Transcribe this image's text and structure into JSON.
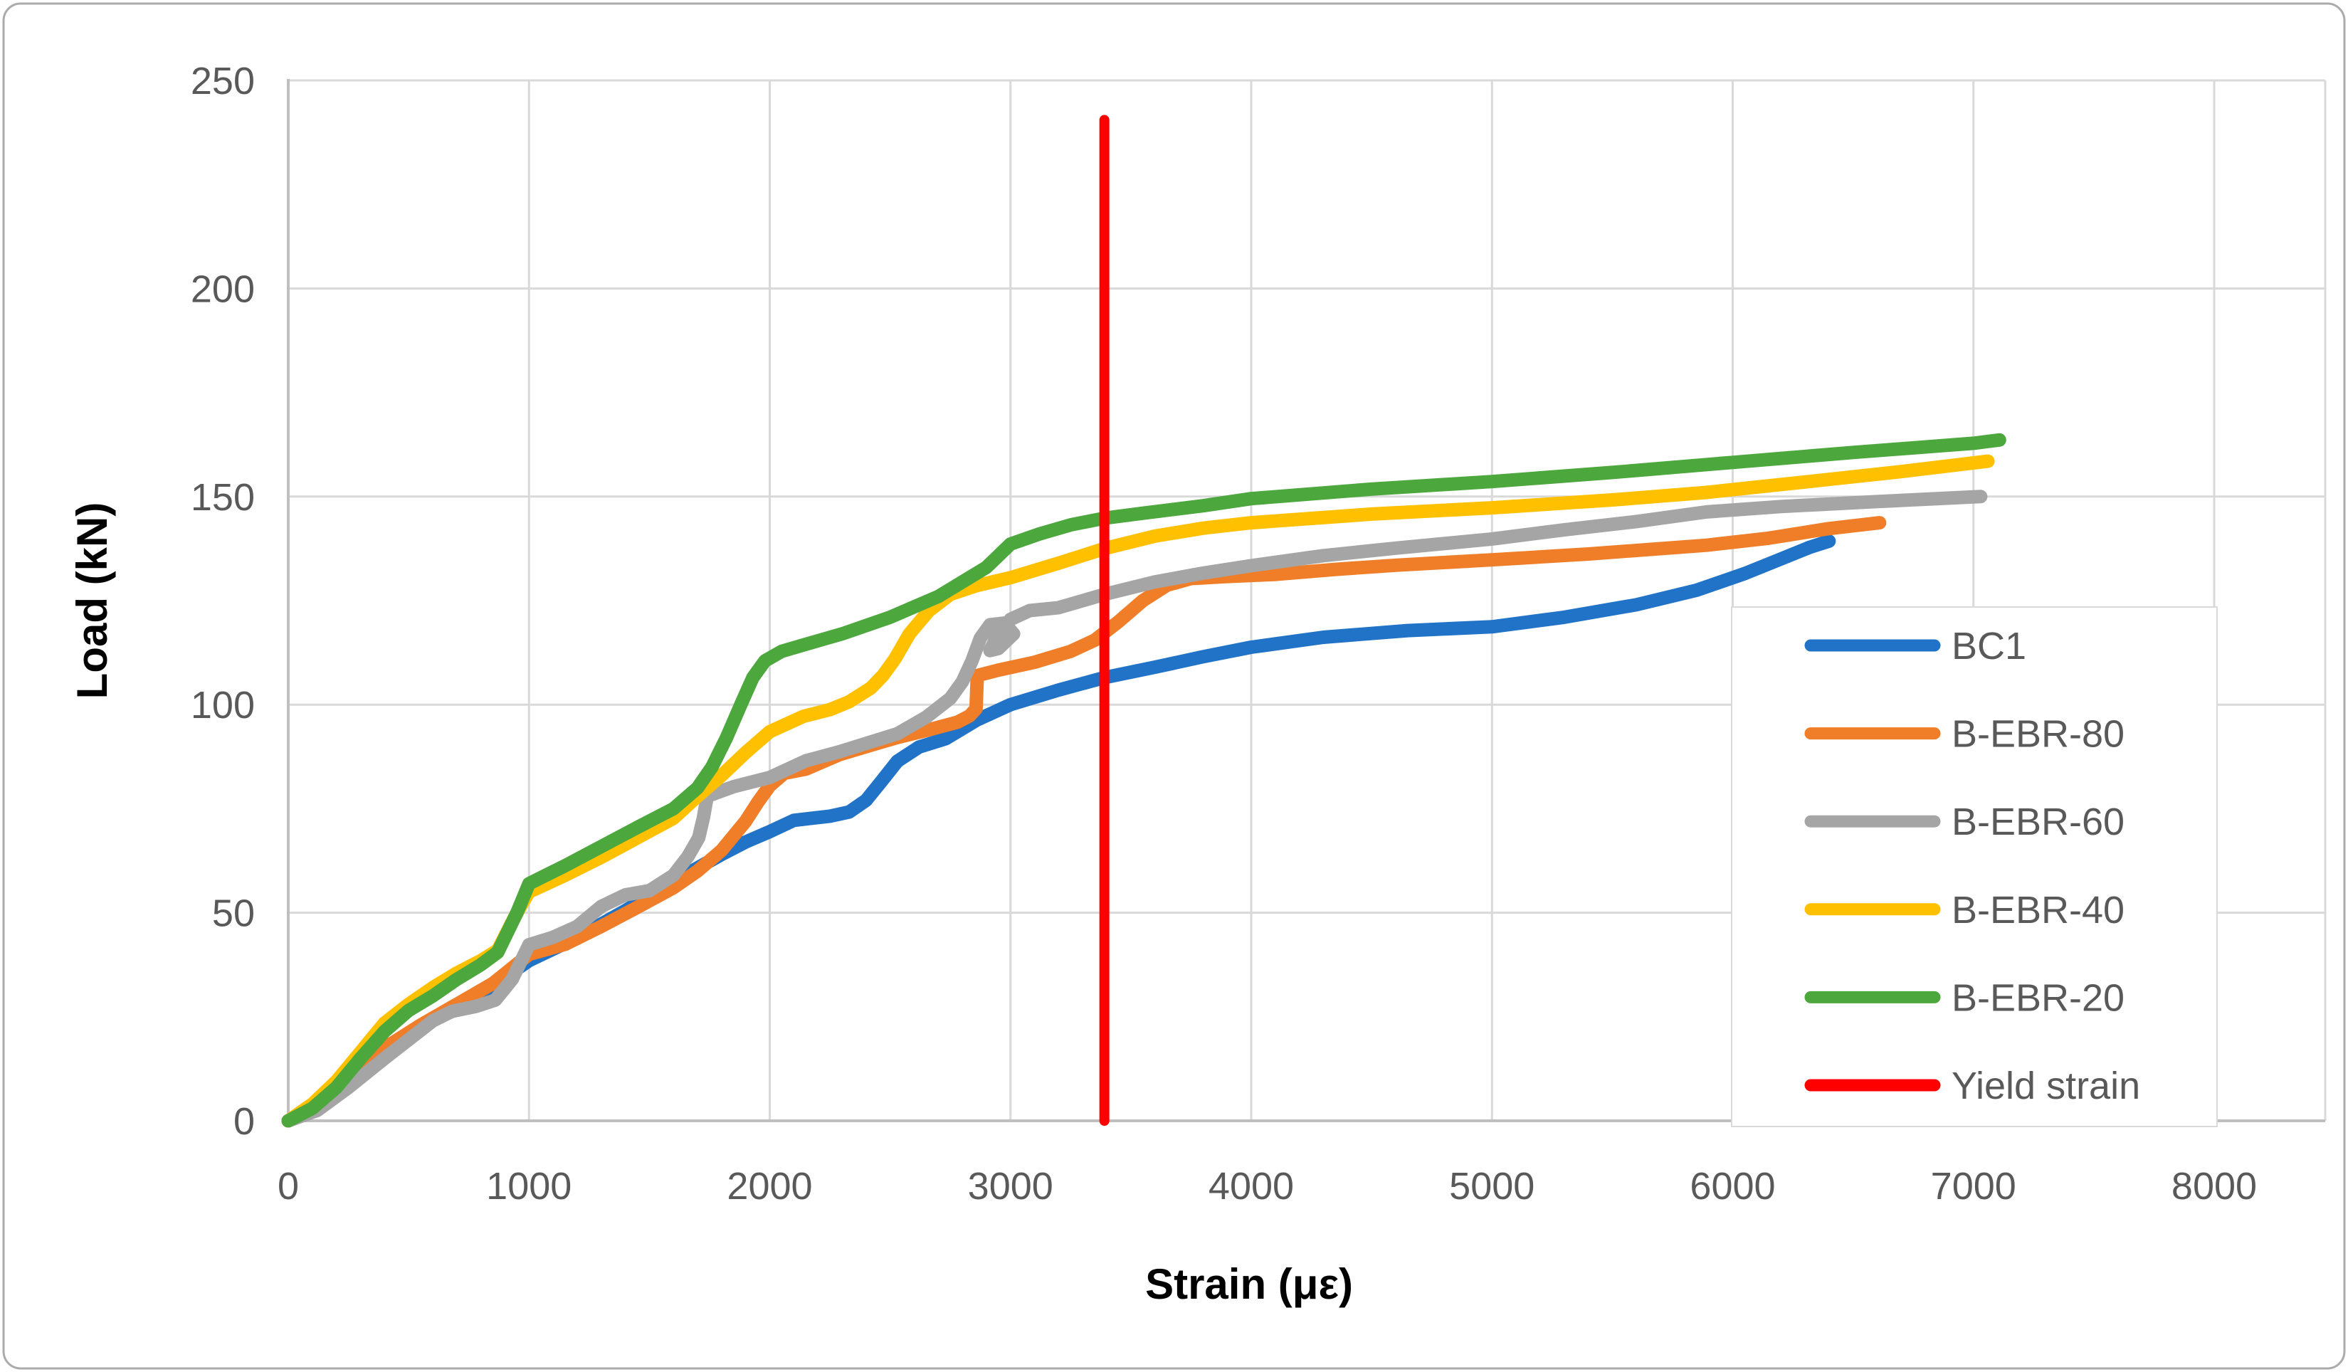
{
  "chart_data": {
    "type": "line",
    "title": "",
    "xlabel": "Strain (με)",
    "ylabel": "Load (kN)",
    "xlim": [
      0,
      8000
    ],
    "ylim": [
      0,
      250
    ],
    "x_ticks": [
      0,
      1000,
      2000,
      3000,
      4000,
      5000,
      6000,
      7000,
      8000
    ],
    "y_ticks": [
      0,
      50,
      100,
      150,
      200,
      250
    ],
    "grid": true,
    "legend_position": "inside-right",
    "colors": {
      "gridline": "#D9D9D9",
      "axis_line": "#BFBFBF",
      "tick_text": "#595959",
      "legend_border": "#D9D9D9",
      "outer_border": "#ABABAB",
      "yield_line": "#FF0000"
    },
    "series": [
      {
        "name": "BC1",
        "color": "#2173C7",
        "points": [
          [
            0,
            0
          ],
          [
            120,
            3
          ],
          [
            250,
            8.5
          ],
          [
            400,
            17
          ],
          [
            550,
            22.5
          ],
          [
            700,
            27.5
          ],
          [
            850,
            32.5
          ],
          [
            1000,
            38.5
          ],
          [
            1200,
            44
          ],
          [
            1400,
            50.5
          ],
          [
            1600,
            57.5
          ],
          [
            1800,
            64
          ],
          [
            1900,
            67
          ],
          [
            2000,
            69.5
          ],
          [
            2100,
            72.2
          ],
          [
            2250,
            73.2
          ],
          [
            2330,
            74.2
          ],
          [
            2400,
            77
          ],
          [
            2460,
            81.3
          ],
          [
            2530,
            86.4
          ],
          [
            2620,
            89.8
          ],
          [
            2730,
            91.8
          ],
          [
            2860,
            96.3
          ],
          [
            3000,
            100
          ],
          [
            3200,
            103.5
          ],
          [
            3390,
            106.5
          ],
          [
            3600,
            109
          ],
          [
            3800,
            111.5
          ],
          [
            4000,
            113.8
          ],
          [
            4300,
            116.2
          ],
          [
            4650,
            117.8
          ],
          [
            5000,
            118.7
          ],
          [
            5300,
            121
          ],
          [
            5600,
            124
          ],
          [
            5850,
            127.5
          ],
          [
            6050,
            131.5
          ],
          [
            6200,
            135
          ],
          [
            6320,
            137.8
          ],
          [
            6400,
            139.3
          ]
        ]
      },
      {
        "name": "B-EBR-80",
        "color": "#F07D28",
        "points": [
          [
            0,
            0
          ],
          [
            120,
            3.5
          ],
          [
            250,
            9
          ],
          [
            400,
            17.5
          ],
          [
            550,
            23
          ],
          [
            700,
            28
          ],
          [
            850,
            33
          ],
          [
            1000,
            40
          ],
          [
            1150,
            42.4
          ],
          [
            1300,
            46.7
          ],
          [
            1450,
            51.3
          ],
          [
            1600,
            56
          ],
          [
            1700,
            60
          ],
          [
            1800,
            65
          ],
          [
            1900,
            72
          ],
          [
            1950,
            76.5
          ],
          [
            2000,
            80.5
          ],
          [
            2060,
            83.5
          ],
          [
            2150,
            84.5
          ],
          [
            2290,
            88
          ],
          [
            2435,
            90.5
          ],
          [
            2530,
            92.1
          ],
          [
            2650,
            93.8
          ],
          [
            2780,
            95.8
          ],
          [
            2830,
            97.3
          ],
          [
            2857,
            99
          ],
          [
            2862,
            107
          ],
          [
            2950,
            108.3
          ],
          [
            3100,
            110.2
          ],
          [
            3250,
            112.8
          ],
          [
            3350,
            115.5
          ],
          [
            3450,
            120
          ],
          [
            3550,
            125
          ],
          [
            3650,
            128.7
          ],
          [
            3750,
            130.3
          ],
          [
            3900,
            130.8
          ],
          [
            4100,
            131.3
          ],
          [
            4350,
            132.5
          ],
          [
            4600,
            133.5
          ],
          [
            5000,
            134.8
          ],
          [
            5400,
            136.2
          ],
          [
            5891,
            138.3
          ],
          [
            6150,
            140
          ],
          [
            6400,
            142.3
          ],
          [
            6610,
            143.7
          ]
        ]
      },
      {
        "name": "B-EBR-60",
        "color": "#A5A5A5",
        "points": [
          [
            0,
            0
          ],
          [
            120,
            2.5
          ],
          [
            250,
            8
          ],
          [
            400,
            15
          ],
          [
            500,
            19.5
          ],
          [
            600,
            24
          ],
          [
            680,
            26.3
          ],
          [
            780,
            27.5
          ],
          [
            860,
            29
          ],
          [
            930,
            34
          ],
          [
            1000,
            42.3
          ],
          [
            1100,
            44.1
          ],
          [
            1200,
            46.7
          ],
          [
            1300,
            51.5
          ],
          [
            1400,
            54.3
          ],
          [
            1500,
            55.3
          ],
          [
            1600,
            59
          ],
          [
            1660,
            63.5
          ],
          [
            1705,
            68
          ],
          [
            1725,
            73
          ],
          [
            1740,
            78
          ],
          [
            1850,
            80.3
          ],
          [
            2000,
            82.5
          ],
          [
            2150,
            86.5
          ],
          [
            2290,
            88.7
          ],
          [
            2435,
            91.3
          ],
          [
            2530,
            93
          ],
          [
            2650,
            97
          ],
          [
            2750,
            101.5
          ],
          [
            2800,
            105.5
          ],
          [
            2840,
            110.5
          ],
          [
            2875,
            116
          ],
          [
            2915,
            119.2
          ],
          [
            2975,
            119.6
          ],
          [
            3013,
            117
          ],
          [
            2950,
            113.5
          ],
          [
            2915,
            113
          ],
          [
            2945,
            116.5
          ],
          [
            3000,
            120.5
          ],
          [
            3080,
            122.6
          ],
          [
            3200,
            123.3
          ],
          [
            3390,
            126.5
          ],
          [
            3600,
            129.5
          ],
          [
            3800,
            131.6
          ],
          [
            4000,
            133.4
          ],
          [
            4300,
            135.8
          ],
          [
            4600,
            137.6
          ],
          [
            5000,
            139.8
          ],
          [
            5300,
            142
          ],
          [
            5600,
            144
          ],
          [
            5891,
            146.3
          ],
          [
            6200,
            147.6
          ],
          [
            6600,
            148.8
          ],
          [
            7030,
            150
          ]
        ]
      },
      {
        "name": "B-EBR-40",
        "color": "#FFC000",
        "points": [
          [
            0,
            0
          ],
          [
            100,
            4
          ],
          [
            200,
            9.5
          ],
          [
            300,
            16.5
          ],
          [
            400,
            23.5
          ],
          [
            500,
            28
          ],
          [
            600,
            32
          ],
          [
            700,
            35.5
          ],
          [
            800,
            38.5
          ],
          [
            870,
            41
          ],
          [
            950,
            50
          ],
          [
            1000,
            55
          ],
          [
            1150,
            59
          ],
          [
            1300,
            63.3
          ],
          [
            1450,
            68
          ],
          [
            1600,
            72.7
          ],
          [
            1700,
            78
          ],
          [
            1800,
            83
          ],
          [
            1900,
            88.5
          ],
          [
            2000,
            93.5
          ],
          [
            2140,
            97.2
          ],
          [
            2250,
            98.8
          ],
          [
            2330,
            100.7
          ],
          [
            2420,
            104
          ],
          [
            2470,
            107
          ],
          [
            2520,
            111
          ],
          [
            2580,
            117
          ],
          [
            2660,
            122.5
          ],
          [
            2750,
            126.5
          ],
          [
            2860,
            128.6
          ],
          [
            3000,
            130.5
          ],
          [
            3200,
            134
          ],
          [
            3390,
            137.5
          ],
          [
            3600,
            140.5
          ],
          [
            3800,
            142.4
          ],
          [
            4000,
            143.7
          ],
          [
            4500,
            145.8
          ],
          [
            5000,
            147.3
          ],
          [
            5500,
            149.2
          ],
          [
            5891,
            151
          ],
          [
            6300,
            153.5
          ],
          [
            6700,
            156
          ],
          [
            7060,
            158.5
          ]
        ]
      },
      {
        "name": "B-EBR-20",
        "color": "#4CA73D",
        "points": [
          [
            0,
            0
          ],
          [
            100,
            3
          ],
          [
            200,
            8
          ],
          [
            300,
            15
          ],
          [
            400,
            21.5
          ],
          [
            500,
            26.5
          ],
          [
            600,
            30
          ],
          [
            700,
            34
          ],
          [
            800,
            37.5
          ],
          [
            870,
            40.5
          ],
          [
            950,
            50
          ],
          [
            1000,
            57
          ],
          [
            1150,
            61.3
          ],
          [
            1300,
            65.9
          ],
          [
            1450,
            70.5
          ],
          [
            1600,
            75
          ],
          [
            1700,
            80
          ],
          [
            1760,
            85
          ],
          [
            1820,
            92
          ],
          [
            1880,
            100
          ],
          [
            1930,
            106.5
          ],
          [
            1980,
            110.5
          ],
          [
            2050,
            112.8
          ],
          [
            2150,
            114.5
          ],
          [
            2300,
            117
          ],
          [
            2500,
            121
          ],
          [
            2700,
            126
          ],
          [
            2900,
            133
          ],
          [
            3000,
            138.6
          ],
          [
            3120,
            141
          ],
          [
            3250,
            143.2
          ],
          [
            3390,
            144.8
          ],
          [
            3550,
            146
          ],
          [
            3800,
            147.8
          ],
          [
            4000,
            149.5
          ],
          [
            4500,
            151.8
          ],
          [
            5000,
            153.6
          ],
          [
            5500,
            155.8
          ],
          [
            6000,
            158.2
          ],
          [
            6500,
            160.6
          ],
          [
            7000,
            162.8
          ],
          [
            7108,
            163.6
          ]
        ]
      }
    ],
    "vline": {
      "name": "Yield strain",
      "color": "#FF0000",
      "x": 3390,
      "y_bottom": 0,
      "y_top": 240.5
    },
    "legend_items": [
      "BC1",
      "B-EBR-80",
      "B-EBR-60",
      "B-EBR-40",
      "B-EBR-20",
      "Yield strain"
    ]
  }
}
